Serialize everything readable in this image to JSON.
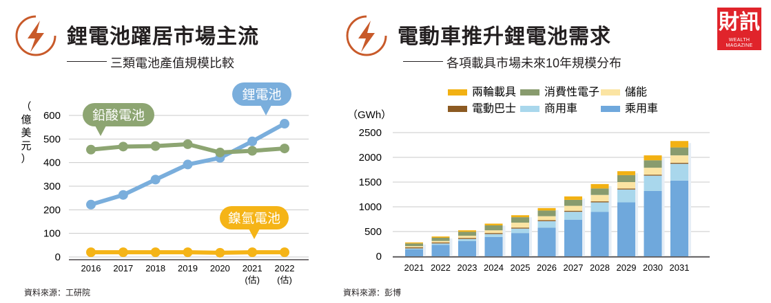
{
  "colors": {
    "lithium": "#7aaedc",
    "lead_acid": "#8da572",
    "nimh": "#f5b417",
    "two_wheel": "#f2b113",
    "consumer": "#889b6e",
    "storage": "#fbe4a3",
    "bus": "#8c5a22",
    "commercial": "#a9d7ec",
    "passenger": "#6fa8dc",
    "bolt_orange": "#c85a2a",
    "logo_red": "#e0242b"
  },
  "left_panel": {
    "title": "鋰電池躍居市場主流",
    "subtitle": "三類電池產值規模比較",
    "source": "資料來源：工研院",
    "icon": "lightning-bolt-icon"
  },
  "right_panel": {
    "title": "電動車推升鋰電池需求",
    "subtitle": "各項載具市場未來10年規模分布",
    "source": "資料來源：彭博",
    "icon": "lightning-bolt-icon"
  },
  "logo": {
    "main": "財訊",
    "sub": "WEALTH MAGAZINE"
  },
  "chart_data": [
    {
      "type": "line",
      "ylabel": "（億美元）",
      "ylim": [
        0,
        600
      ],
      "yticks": [
        0,
        100,
        200,
        300,
        400,
        500,
        600
      ],
      "x": [
        "2016",
        "2017",
        "2018",
        "2019",
        "2020",
        "2021",
        "2022"
      ],
      "x_sublabels": [
        "",
        "",
        "",
        "",
        "",
        "(估)",
        "(估)"
      ],
      "grid": true,
      "series": [
        {
          "name": "鋰電池",
          "values": [
            222,
            263,
            328,
            392,
            420,
            490,
            565
          ]
        },
        {
          "name": "鉛酸電池",
          "values": [
            455,
            468,
            470,
            478,
            443,
            450,
            460
          ]
        },
        {
          "name": "鎳氫電池",
          "values": [
            20,
            20,
            20,
            20,
            18,
            20,
            20
          ]
        }
      ]
    },
    {
      "type": "bar",
      "stacked": true,
      "ylabel": "（GWh）",
      "ylim": [
        0,
        2500
      ],
      "yticks": [
        0,
        500,
        1000,
        1500,
        2000,
        2500
      ],
      "legend_position": "top",
      "categories": [
        "2021",
        "2022",
        "2023",
        "2024",
        "2025",
        "2026",
        "2027",
        "2028",
        "2029",
        "2030",
        "2031"
      ],
      "series": [
        {
          "name": "乘用車",
          "values": [
            140,
            230,
            310,
            390,
            470,
            580,
            740,
            900,
            1090,
            1320,
            1530
          ]
        },
        {
          "name": "商用車",
          "values": [
            20,
            30,
            40,
            60,
            90,
            130,
            160,
            190,
            260,
            310,
            340
          ]
        },
        {
          "name": "電動巴士",
          "values": [
            20,
            20,
            20,
            20,
            20,
            20,
            20,
            20,
            20,
            20,
            20
          ]
        },
        {
          "name": "儲能",
          "values": [
            25,
            30,
            45,
            55,
            100,
            80,
            100,
            130,
            130,
            140,
            150
          ]
        },
        {
          "name": "消費性電子",
          "values": [
            55,
            65,
            80,
            100,
            110,
            115,
            120,
            130,
            140,
            150,
            160
          ]
        },
        {
          "name": "兩輪載具",
          "values": [
            20,
            25,
            30,
            35,
            40,
            50,
            70,
            90,
            80,
            100,
            130
          ]
        }
      ]
    }
  ]
}
